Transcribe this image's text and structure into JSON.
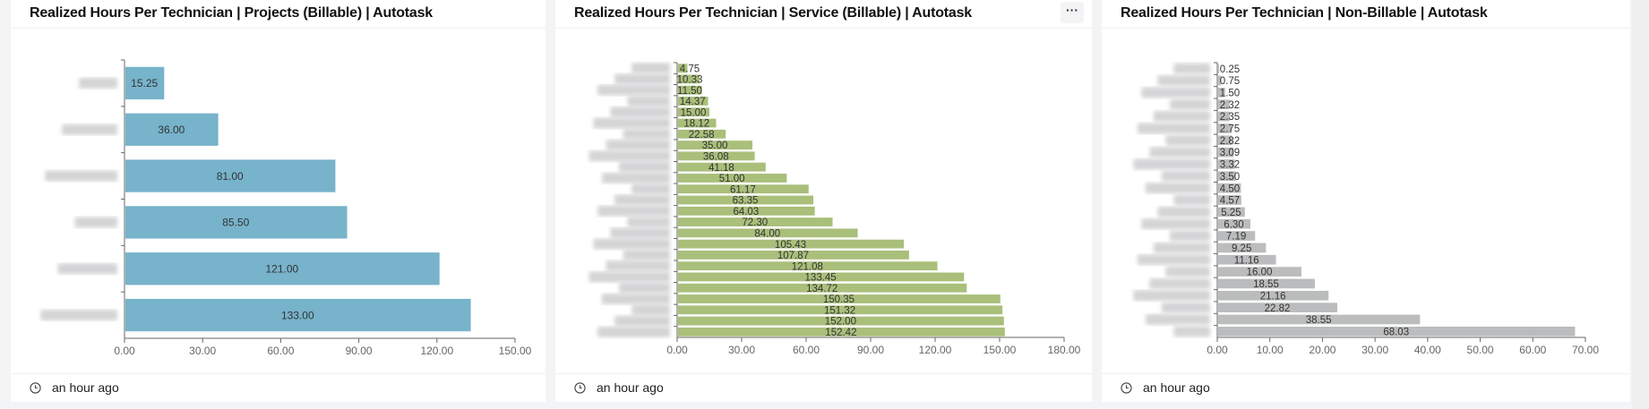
{
  "panels": [
    {
      "title": "Realized Hours Per Technician | Projects (Billable) | Autotask",
      "footer": "an hour ago"
    },
    {
      "title": "Realized Hours Per Technician | Service (Billable) | Autotask",
      "footer": "an hour ago",
      "menu_label": "···"
    },
    {
      "title": "Realized Hours Per Technician | Non-Billable | Autotask",
      "footer": "an hour ago"
    }
  ],
  "icons": {
    "footer": "clock-icon",
    "menu": "more-options-icon"
  },
  "chart_data": [
    {
      "type": "bar",
      "orientation": "horizontal",
      "color": "#77b3cb",
      "values": [
        15.25,
        36.0,
        81.0,
        85.5,
        121.0,
        133.0
      ],
      "xlim": [
        0,
        150
      ],
      "xticks": [
        "0.00",
        "30.00",
        "60.00",
        "90.00",
        "120.00",
        "150.00"
      ],
      "grid": false
    },
    {
      "type": "bar",
      "orientation": "horizontal",
      "color": "#a9bf7a",
      "values": [
        4.75,
        10.33,
        11.5,
        14.37,
        15.0,
        18.12,
        22.58,
        35.0,
        36.08,
        41.18,
        51.0,
        61.17,
        63.35,
        64.03,
        72.3,
        84.0,
        105.43,
        107.87,
        121.08,
        133.45,
        134.72,
        150.35,
        151.32,
        152.0,
        152.42
      ],
      "xlim": [
        0,
        180
      ],
      "xticks": [
        "0.00",
        "30.00",
        "60.00",
        "90.00",
        "120.00",
        "150.00",
        "180.00"
      ],
      "grid": false
    },
    {
      "type": "bar",
      "orientation": "horizontal",
      "color": "#bbbcbd",
      "values": [
        0.25,
        0.75,
        1.5,
        2.32,
        2.35,
        2.75,
        2.82,
        3.09,
        3.32,
        3.5,
        4.5,
        4.57,
        5.25,
        6.3,
        7.19,
        9.25,
        11.16,
        16.0,
        18.55,
        21.16,
        22.82,
        38.55,
        68.03
      ],
      "xlim": [
        0,
        70
      ],
      "xticks": [
        "0.00",
        "10.00",
        "20.00",
        "30.00",
        "40.00",
        "50.00",
        "60.00",
        "70.00"
      ],
      "grid": false
    }
  ]
}
